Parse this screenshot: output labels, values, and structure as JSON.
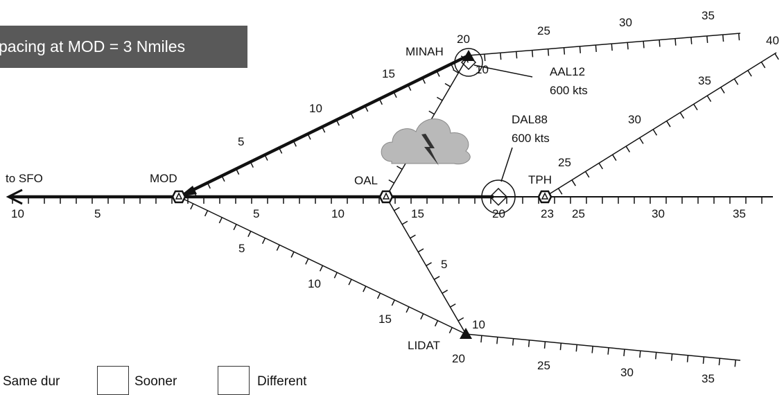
{
  "banner": {
    "text": "pacing at MOD = 3 Nmiles"
  },
  "waypoints": {
    "minah": "MINAH",
    "mod": "MOD",
    "oal": "OAL",
    "tph": "TPH",
    "lidat": "LIDAT",
    "to_sfo": "to SFO"
  },
  "aircraft": [
    {
      "callsign": "AAL12",
      "speed": "600 kts"
    },
    {
      "callsign": "DAL88",
      "speed": "600 kts"
    }
  ],
  "main_axis_labels": [
    "10",
    "5",
    "5",
    "10",
    "15",
    "20",
    "23",
    "25",
    "30",
    "35"
  ],
  "minah_route_labels": [
    "5",
    "10",
    "15",
    "20"
  ],
  "minah_top_labels": [
    "25",
    "30",
    "35"
  ],
  "oal_minah_label": "10",
  "tph_route_labels": [
    "25",
    "30",
    "35",
    "40"
  ],
  "mod_lidat_labels": [
    "5",
    "10",
    "15"
  ],
  "oal_lidat_label": "5",
  "lidat_labels": [
    "10",
    "20",
    "25",
    "30",
    "35"
  ],
  "answers": {
    "same_label": "Same dur",
    "sooner_label": "Sooner",
    "different_label": "Different"
  },
  "colors": {
    "banner": "#595959",
    "cloud": "#b9b9b9",
    "line": "#111111"
  }
}
